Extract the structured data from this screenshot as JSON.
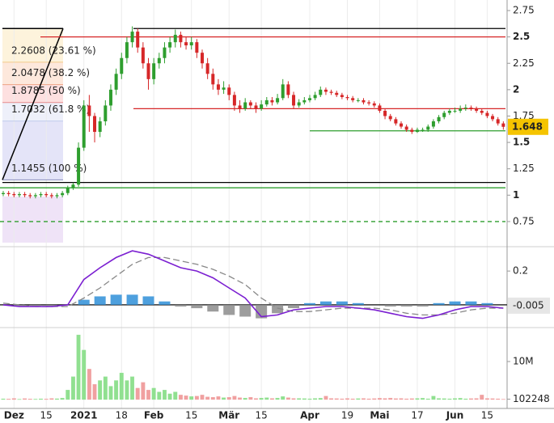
{
  "chart_data": {
    "type": "candlestick",
    "xlim": [
      -0.6,
      93.7
    ],
    "xticks": [
      {
        "value": 2,
        "label": "Dez"
      },
      {
        "value": 8,
        "label": "15"
      },
      {
        "value": 15,
        "label": "2021"
      },
      {
        "value": 22,
        "label": "18"
      },
      {
        "value": 28,
        "label": "Feb"
      },
      {
        "value": 35,
        "label": "15"
      },
      {
        "value": 42,
        "label": "Mär"
      },
      {
        "value": 48,
        "label": "15"
      },
      {
        "value": 57,
        "label": "Apr"
      },
      {
        "value": 64,
        "label": "19"
      },
      {
        "value": 70,
        "label": "Mai"
      },
      {
        "value": 77,
        "label": "17"
      },
      {
        "value": 84,
        "label": "Jun"
      },
      {
        "value": 90,
        "label": "15"
      }
    ],
    "ylim": [
      0.55,
      2.85
    ],
    "yticks": [
      2.75,
      2.5,
      2.25,
      2,
      1.75,
      1.5,
      1.25,
      1,
      0.75
    ],
    "up_color": "#2e9e2e",
    "down_color": "#d62728",
    "open": [
      1.01,
      1.02,
      1.01,
      1.0,
      1.01,
      1.0,
      0.99,
      1.0,
      1.01,
      1.0,
      0.99,
      1.0,
      1.02,
      1.07,
      1.1,
      1.45,
      1.85,
      1.75,
      1.6,
      1.7,
      1.85,
      2.0,
      2.15,
      2.3,
      2.45,
      2.55,
      2.4,
      2.25,
      2.1,
      2.25,
      2.3,
      2.4,
      2.45,
      2.52,
      2.45,
      2.42,
      2.45,
      2.35,
      2.25,
      2.15,
      2.05,
      2.0,
      2.02,
      1.95,
      1.85,
      1.82,
      1.88,
      1.85,
      1.82,
      1.86,
      1.9,
      1.88,
      1.92,
      2.05,
      1.95,
      1.85,
      1.88,
      1.9,
      1.92,
      1.95,
      2.0,
      1.98,
      1.97,
      1.95,
      1.93,
      1.92,
      1.9,
      1.9,
      1.88,
      1.87,
      1.85,
      1.8,
      1.75,
      1.72,
      1.68,
      1.65,
      1.62,
      1.6,
      1.62,
      1.62,
      1.65,
      1.7,
      1.74,
      1.78,
      1.8,
      1.8,
      1.82,
      1.83,
      1.82,
      1.8,
      1.78,
      1.75,
      1.72,
      1.68
    ],
    "high": [
      1.04,
      1.04,
      1.03,
      1.03,
      1.03,
      1.02,
      1.02,
      1.03,
      1.03,
      1.02,
      1.02,
      1.04,
      1.09,
      1.12,
      1.5,
      1.9,
      1.95,
      1.78,
      1.74,
      1.9,
      2.05,
      2.2,
      2.35,
      2.5,
      2.6,
      2.58,
      2.45,
      2.3,
      2.3,
      2.35,
      2.45,
      2.5,
      2.57,
      2.55,
      2.5,
      2.5,
      2.48,
      2.38,
      2.3,
      2.2,
      2.1,
      2.08,
      2.05,
      1.98,
      1.9,
      1.92,
      1.9,
      1.88,
      1.9,
      1.93,
      1.93,
      1.96,
      2.1,
      2.08,
      1.98,
      1.91,
      1.93,
      1.95,
      1.98,
      2.03,
      2.02,
      2.0,
      1.99,
      1.97,
      1.95,
      1.94,
      1.92,
      1.92,
      1.9,
      1.89,
      1.87,
      1.82,
      1.77,
      1.74,
      1.7,
      1.67,
      1.64,
      1.64,
      1.64,
      1.67,
      1.72,
      1.76,
      1.8,
      1.82,
      1.83,
      1.85,
      1.86,
      1.85,
      1.84,
      1.82,
      1.8,
      1.77,
      1.74,
      1.7
    ],
    "low": [
      0.99,
      0.99,
      0.98,
      0.98,
      0.98,
      0.97,
      0.97,
      0.98,
      0.98,
      0.97,
      0.97,
      0.98,
      1.0,
      1.05,
      1.08,
      1.42,
      1.6,
      1.5,
      1.55,
      1.66,
      1.8,
      1.95,
      2.1,
      2.25,
      2.4,
      2.35,
      2.2,
      2.0,
      2.05,
      2.2,
      2.25,
      2.35,
      2.4,
      2.4,
      2.38,
      2.38,
      2.3,
      2.2,
      2.1,
      2.0,
      1.95,
      1.96,
      1.9,
      1.8,
      1.78,
      1.8,
      1.82,
      1.78,
      1.8,
      1.84,
      1.85,
      1.86,
      1.9,
      1.92,
      1.82,
      1.83,
      1.86,
      1.88,
      1.9,
      1.93,
      1.95,
      1.95,
      1.93,
      1.91,
      1.9,
      1.88,
      1.88,
      1.86,
      1.85,
      1.83,
      1.78,
      1.72,
      1.7,
      1.66,
      1.63,
      1.6,
      1.58,
      1.59,
      1.6,
      1.6,
      1.63,
      1.68,
      1.72,
      1.76,
      1.78,
      1.78,
      1.8,
      1.8,
      1.78,
      1.76,
      1.73,
      1.7,
      1.66,
      1.62
    ],
    "close": [
      1.02,
      1.01,
      1.0,
      1.01,
      1.0,
      0.99,
      1.0,
      1.01,
      1.0,
      0.99,
      1.0,
      1.02,
      1.07,
      1.1,
      1.45,
      1.85,
      1.75,
      1.6,
      1.7,
      1.85,
      2.0,
      2.15,
      2.3,
      2.45,
      2.55,
      2.4,
      2.25,
      2.1,
      2.25,
      2.3,
      2.4,
      2.45,
      2.52,
      2.45,
      2.42,
      2.45,
      2.35,
      2.25,
      2.15,
      2.05,
      2.0,
      2.02,
      1.95,
      1.85,
      1.82,
      1.88,
      1.85,
      1.82,
      1.86,
      1.9,
      1.88,
      1.92,
      2.05,
      1.95,
      1.85,
      1.88,
      1.9,
      1.92,
      1.95,
      2.0,
      1.98,
      1.97,
      1.95,
      1.93,
      1.92,
      1.9,
      1.9,
      1.88,
      1.87,
      1.85,
      1.8,
      1.75,
      1.72,
      1.68,
      1.65,
      1.62,
      1.6,
      1.62,
      1.62,
      1.65,
      1.7,
      1.74,
      1.78,
      1.8,
      1.8,
      1.82,
      1.83,
      1.82,
      1.8,
      1.78,
      1.75,
      1.72,
      1.68,
      1.648
    ],
    "last_price": 1.648,
    "last_price_color": "#f5c400",
    "levels": [
      {
        "value": 2.58,
        "color": "#000000"
      },
      {
        "value": 2.5,
        "color": "#d62728"
      },
      {
        "value": 1.82,
        "color": "#d62728"
      },
      {
        "value": 1.61,
        "color": "#2e9e2e"
      },
      {
        "value": 1.12,
        "color": "#000000"
      },
      {
        "value": 1.07,
        "color": "#2e9e2e"
      },
      {
        "value": 0.75,
        "color": "#2e9e2e",
        "dashed": true
      }
    ],
    "fibonacci": [
      {
        "value": 2.2608,
        "label": "2.2608 (23.61 %)",
        "color": "#e8a838"
      },
      {
        "value": 2.0478,
        "label": "2.0478 (38.2 %)",
        "color": "#e0602a"
      },
      {
        "value": 1.8785,
        "label": "1.8785 (50 %)",
        "color": "#d62728"
      },
      {
        "value": 1.7032,
        "label": "1.7032 (61.8 %)",
        "color": "#9aaee0"
      },
      {
        "value": 1.1455,
        "label": "1.1455 (100 %)",
        "color": "#1a237e"
      }
    ],
    "macd": {
      "ylim": [
        -0.13,
        0.33
      ],
      "yticks": [
        0.2
      ],
      "current": -0.005,
      "macd": [
        0,
        -0.01,
        -0.01,
        -0.01,
        0.0,
        0.15,
        0.22,
        0.28,
        0.32,
        0.3,
        0.26,
        0.22,
        0.2,
        0.16,
        0.1,
        0.04,
        -0.07,
        -0.06,
        -0.03,
        -0.02,
        -0.01,
        -0.01,
        -0.02,
        -0.03,
        -0.05,
        -0.07,
        -0.08,
        -0.06,
        -0.03,
        -0.01,
        -0.01,
        -0.02
      ],
      "signal": [
        0.01,
        0.0,
        -0.01,
        -0.01,
        -0.01,
        0.04,
        0.1,
        0.17,
        0.24,
        0.28,
        0.28,
        0.26,
        0.24,
        0.21,
        0.17,
        0.12,
        0.04,
        -0.02,
        -0.04,
        -0.04,
        -0.03,
        -0.02,
        -0.02,
        -0.02,
        -0.03,
        -0.05,
        -0.06,
        -0.06,
        -0.05,
        -0.03,
        -0.02,
        -0.02
      ],
      "histogram": [
        0.0,
        -0.01,
        -0.01,
        -0.01,
        0.0,
        0.03,
        0.05,
        0.06,
        0.06,
        0.05,
        0.02,
        -0.01,
        -0.02,
        -0.04,
        -0.06,
        -0.07,
        -0.08,
        -0.05,
        -0.02,
        0.01,
        0.02,
        0.02,
        0.01,
        0.0,
        -0.01,
        -0.01,
        -0.01,
        0.01,
        0.02,
        0.02,
        0.01,
        0.0
      ],
      "macd_color": "#7b1fd1",
      "signal_color": "#888888",
      "hist_up_color": "#2f8fd8",
      "hist_down_color": "#8c8c8c"
    },
    "volume": {
      "ylim": [
        0,
        18500000
      ],
      "yticks": [
        {
          "value": 10000000,
          "label": "10M"
        },
        102248
      ],
      "up_color": "#90e090",
      "down_color": "#f0a0a0",
      "values": [
        200000,
        150000,
        300000,
        100000,
        250000,
        180000,
        120000,
        200000,
        150000,
        300000,
        220000,
        400000,
        2500000,
        6000000,
        17000000,
        13000000,
        8000000,
        4000000,
        5000000,
        6000000,
        3500000,
        5000000,
        7000000,
        5000000,
        6000000,
        3000000,
        4500000,
        2500000,
        3000000,
        2000000,
        2500000,
        1500000,
        2000000,
        1200000,
        1000000,
        800000,
        900000,
        1200000,
        700000,
        600000,
        800000,
        500000,
        600000,
        900000,
        500000,
        400000,
        600000,
        300000,
        400000,
        500000,
        300000,
        400000,
        800000,
        500000,
        300000,
        300000,
        250000,
        200000,
        300000,
        350000,
        900000,
        300000,
        250000,
        200000,
        300000,
        200000,
        250000,
        300000,
        200000,
        250000,
        350000,
        300000,
        400000,
        250000,
        300000,
        200000,
        250000,
        300000,
        350000,
        200000,
        900000,
        300000,
        250000,
        200000,
        300000,
        350000,
        200000,
        250000,
        300000,
        1200000,
        300000,
        250000,
        200000,
        102248
      ]
    }
  }
}
